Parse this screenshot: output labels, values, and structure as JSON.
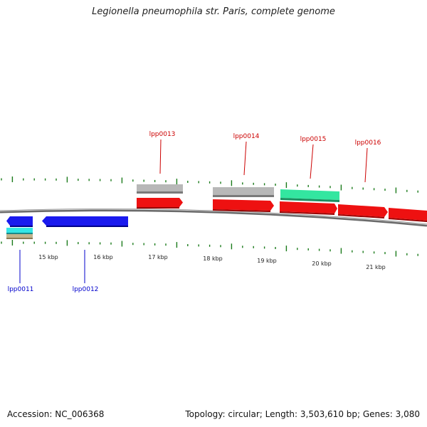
{
  "title": "Legionella pneumophila str. Paris, complete genome",
  "footer": {
    "accession": "Accession: NC_006368",
    "stats": "Topology: circular; Length: 3,503,610 bp; Genes: 3,080"
  },
  "colors": {
    "forward_cds": "#ee1111",
    "reverse_cds": "#1a1aee",
    "tick": "#1a7a1a",
    "backbone": "#777777",
    "forward_label": "#cc0000",
    "reverse_label": "#0000cc",
    "gray_feature": "#b4b4b4",
    "green_feature": "#33e6a0",
    "cyan_feature": "#33e6e6",
    "tan_feature": "#c2b38c"
  },
  "scale_labels": [
    "15 kbp",
    "16 kbp",
    "17 kbp",
    "18 kbp",
    "19 kbp",
    "20 kbp",
    "21 kbp"
  ],
  "gene_labels": {
    "forward": [
      "lpp0013",
      "lpp0014",
      "lpp0015",
      "lpp0016"
    ],
    "reverse": [
      "lpp0011",
      "lpp0012"
    ]
  }
}
